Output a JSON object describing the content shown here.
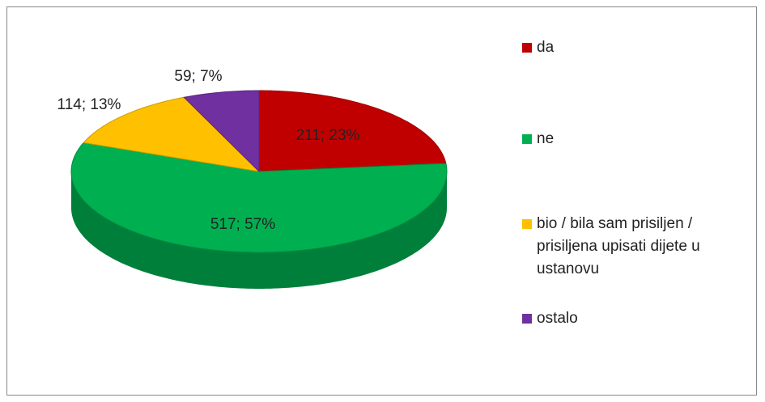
{
  "chart_data": {
    "type": "pie",
    "categories": [
      "da",
      "ne",
      "bio / bila sam prisiljen / prisiljena upisati dijete u ustanovu",
      "ostalo"
    ],
    "values": [
      211,
      517,
      114,
      59
    ],
    "value_labels": [
      "211; 23%",
      "517; 57%",
      "114; 13%",
      "59; 7%"
    ],
    "colors": [
      "#c00000",
      "#00b050",
      "#ffc000",
      "#7030a0"
    ],
    "legend": "right"
  }
}
